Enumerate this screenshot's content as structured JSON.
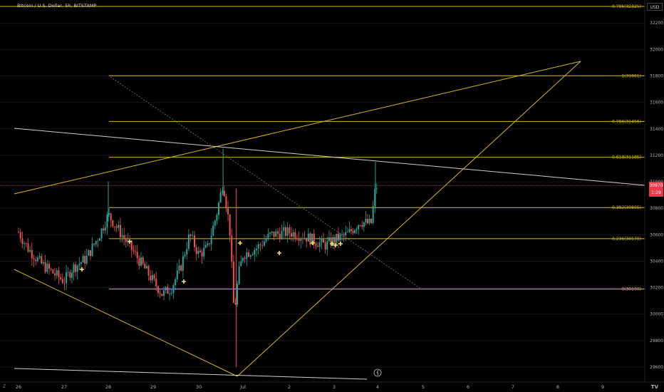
{
  "title": "Bitcoin / U.S. Dollar, 5h, BITSTAMP",
  "currency": "USD",
  "corner_label": "Z",
  "tv_logo": "TV",
  "last_price": "30970",
  "countdown": "1:29",
  "colors": {
    "background": "#000000",
    "up": "#26a69a",
    "down": "#ef5350",
    "fib": "#d4b52a",
    "trend": "#d4b52a",
    "white_line": "#cfcfcf",
    "price_line": "#f23645"
  },
  "chart_data": {
    "type": "candlestick",
    "title": "Bitcoin / U.S. Dollar, 5h, BITSTAMP",
    "x_ticks": [
      "26",
      "27",
      "28",
      "29",
      "30",
      "Jul",
      "2",
      "3",
      "4",
      "5",
      "6",
      "7",
      "8",
      "9"
    ],
    "y_ticks": [
      29600,
      29800,
      30000,
      30200,
      30400,
      30600,
      30800,
      31000,
      31200,
      31400,
      31600,
      31800,
      32000,
      32200
    ],
    "ylim": [
      29500,
      32350
    ],
    "xlim_days": [
      26,
      9
    ],
    "fib_levels": [
      {
        "label": "0(30190)",
        "value": 30190
      },
      {
        "label": "0.236(30570)",
        "value": 30570
      },
      {
        "label": "0.382(30805)",
        "value": 30805
      },
      {
        "label": "0.618(31185)",
        "value": 31185
      },
      {
        "label": "0.786(31456)",
        "value": 31456
      },
      {
        "label": "1(31801)",
        "value": 31801
      },
      {
        "label": "0.786(32325)",
        "value": 32325
      }
    ],
    "current_price": 30970,
    "candles_close_path": [
      [
        26.0,
        30620
      ],
      [
        26.2,
        30500
      ],
      [
        26.5,
        30380
      ],
      [
        26.8,
        30300
      ],
      [
        27.0,
        30250
      ],
      [
        27.2,
        30350
      ],
      [
        27.5,
        30420
      ],
      [
        27.8,
        30600
      ],
      [
        28.0,
        30750
      ],
      [
        28.2,
        30650
      ],
      [
        28.5,
        30500
      ],
      [
        28.8,
        30350
      ],
      [
        29.0,
        30250
      ],
      [
        29.2,
        30150
      ],
      [
        29.4,
        30200
      ],
      [
        29.6,
        30350
      ],
      [
        29.8,
        30600
      ],
      [
        30.0,
        30450
      ],
      [
        30.2,
        30500
      ],
      [
        30.4,
        30750
      ],
      [
        30.55,
        31000
      ],
      [
        30.7,
        30650
      ],
      [
        30.8,
        30000
      ],
      [
        30.9,
        30300
      ],
      [
        31.0,
        30450
      ],
      [
        31.3,
        30500
      ],
      [
        31.6,
        30600
      ],
      [
        32.0,
        30620
      ],
      [
        32.4,
        30580
      ],
      [
        32.8,
        30520
      ],
      [
        33.0,
        30560
      ],
      [
        33.3,
        30600
      ],
      [
        33.6,
        30700
      ],
      [
        33.85,
        30680
      ],
      [
        33.95,
        30950
      ],
      [
        34.0,
        30970
      ]
    ]
  }
}
